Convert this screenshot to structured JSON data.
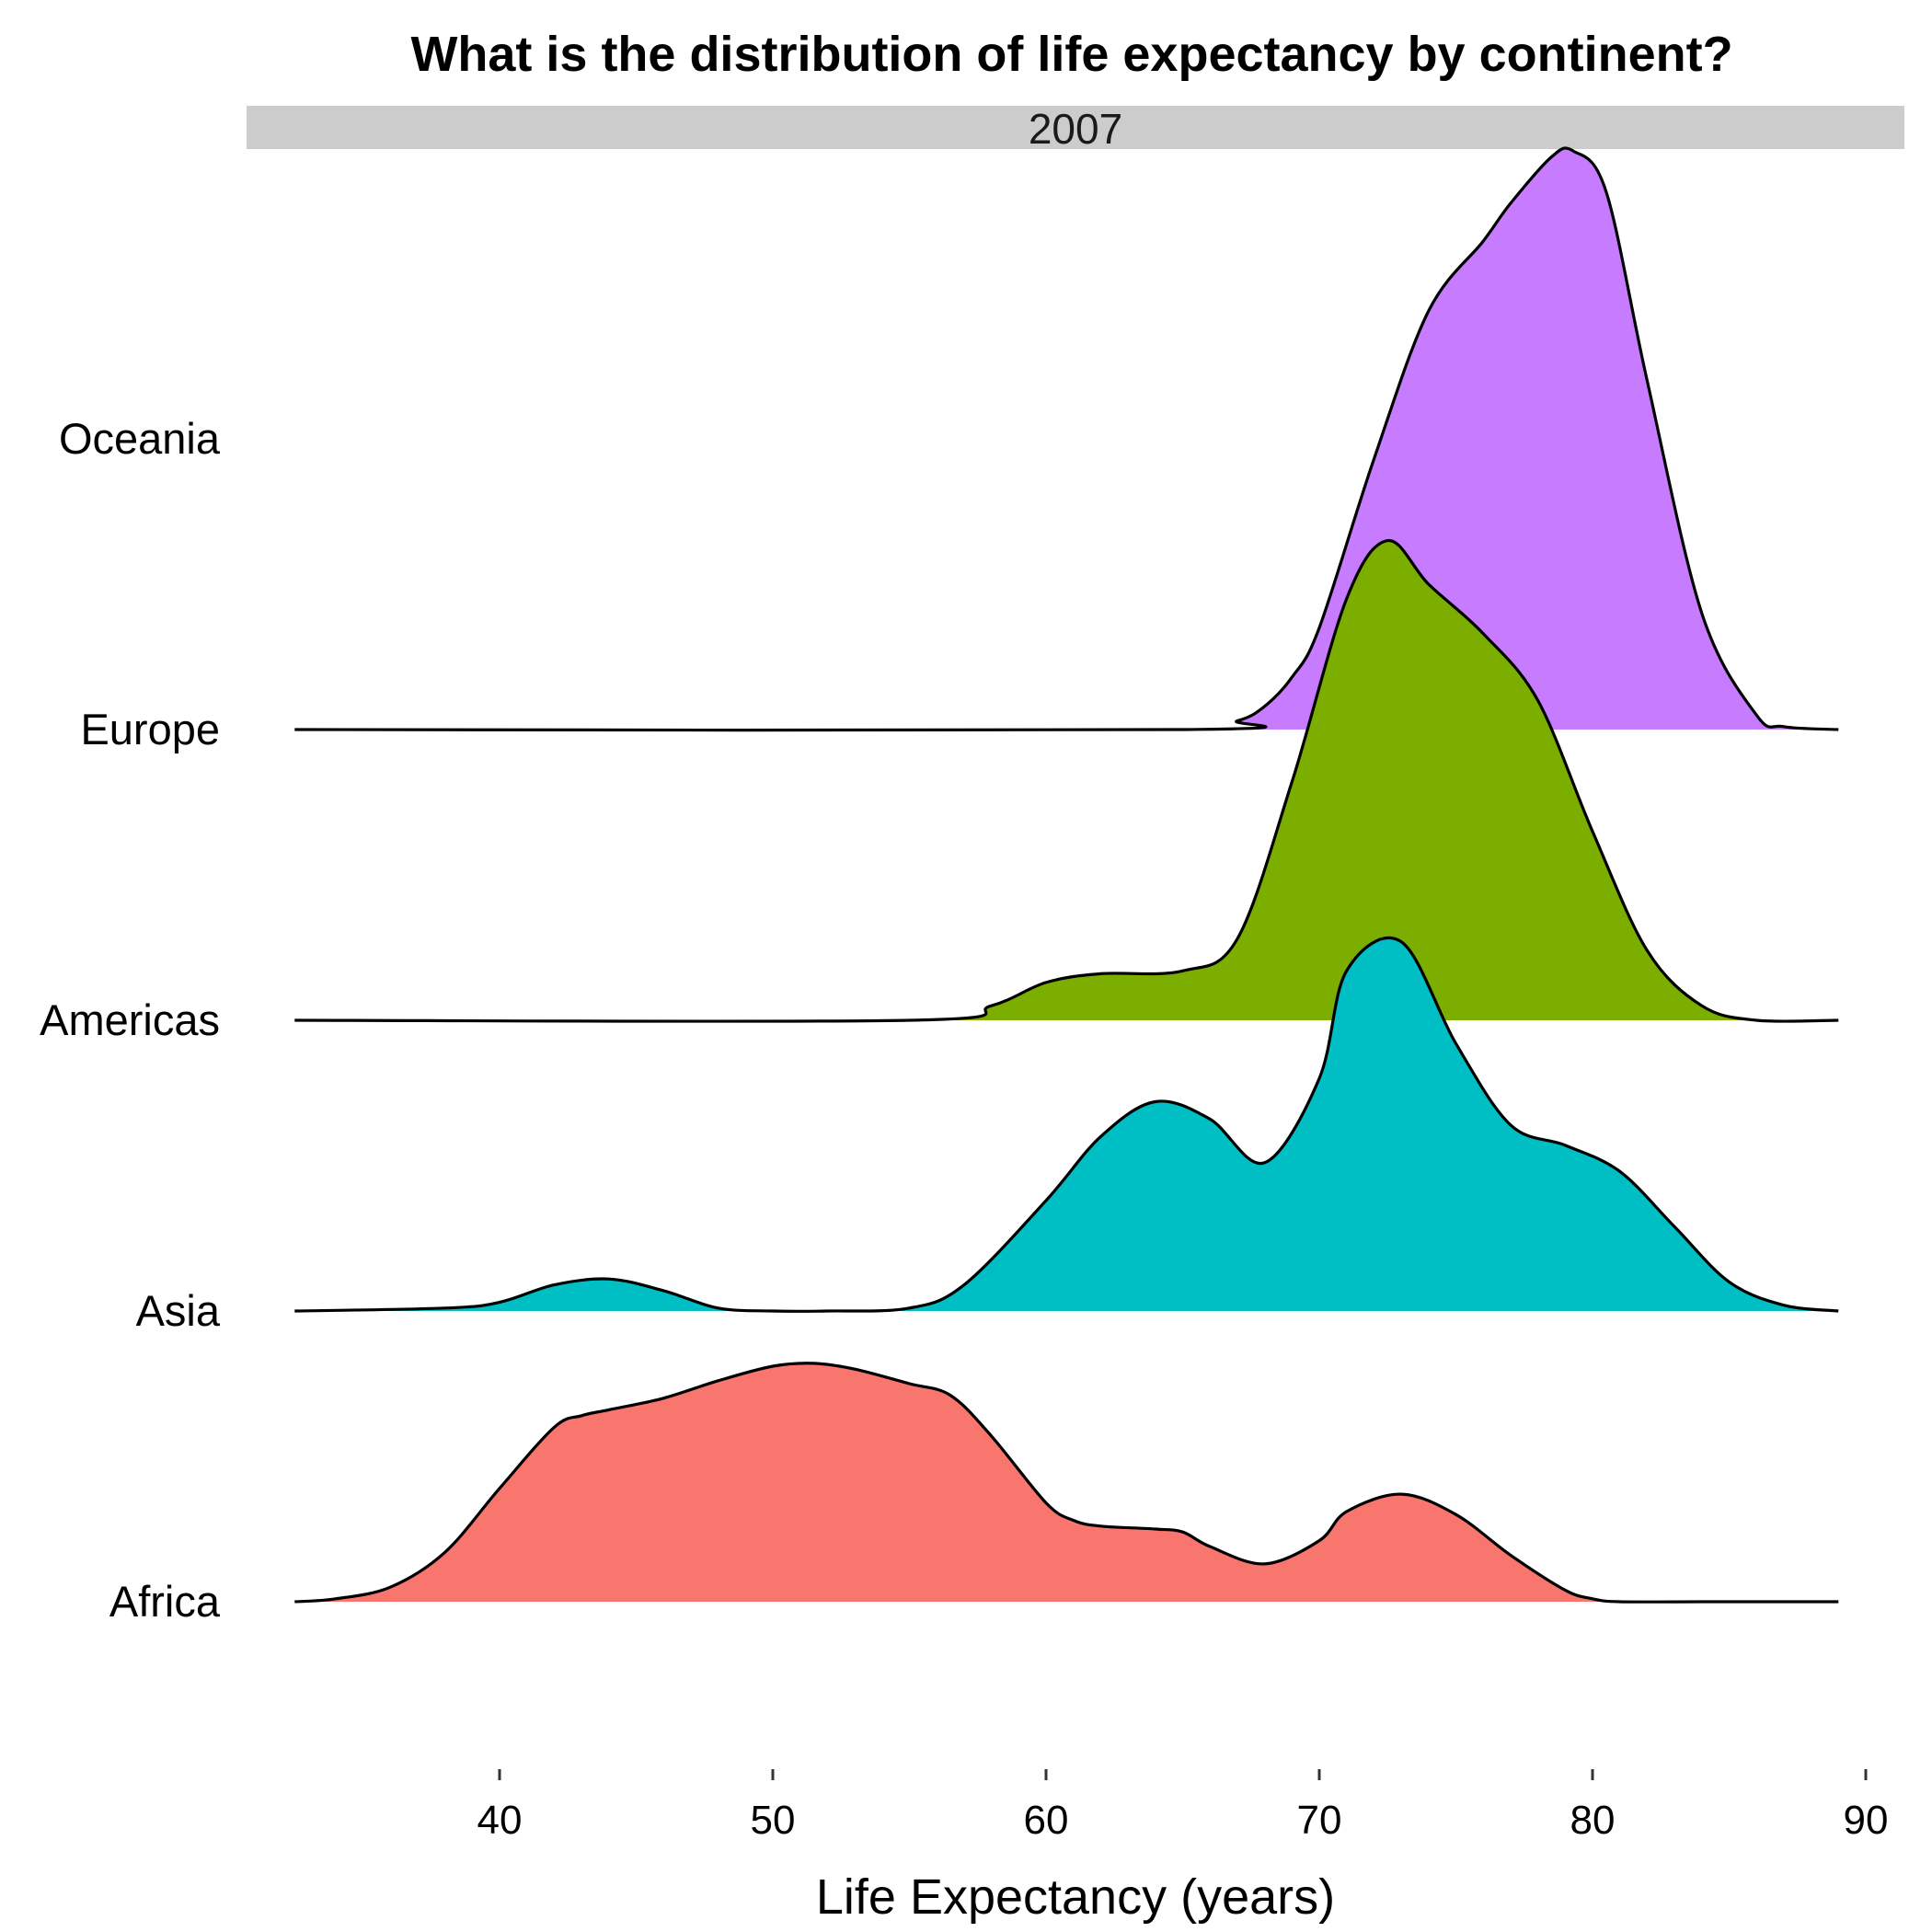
{
  "title": "What is the distribution of life expectancy by continent?",
  "chart_data": {
    "type": "area",
    "subtype": "ridgeline",
    "title": "What is the distribution of life expectancy by continent?",
    "facet_strip": "2007",
    "xlabel": "Life Expectancy (years)",
    "ylabel": "",
    "xlim": [
      32.5,
      89
    ],
    "x_ticks": [
      40,
      50,
      60,
      70,
      80,
      90
    ],
    "grid": false,
    "legend": "none",
    "categories": [
      "Africa",
      "Asia",
      "Americas",
      "Europe",
      "Oceania"
    ],
    "series": [
      {
        "name": "Africa",
        "color": "#F8766D",
        "x": [
          32.5,
          34,
          36,
          38,
          40,
          42,
          43,
          44,
          46,
          48,
          50,
          51.5,
          53,
          55,
          56.5,
          58,
          60,
          61,
          62,
          64,
          65,
          66,
          68,
          70,
          71,
          73,
          75,
          77,
          79,
          80,
          81,
          84,
          87,
          89
        ],
        "density": [
          0.0,
          0.01,
          0.05,
          0.17,
          0.39,
          0.6,
          0.64,
          0.66,
          0.7,
          0.76,
          0.81,
          0.82,
          0.8,
          0.75,
          0.71,
          0.57,
          0.34,
          0.28,
          0.26,
          0.25,
          0.24,
          0.19,
          0.13,
          0.21,
          0.31,
          0.37,
          0.3,
          0.16,
          0.04,
          0.01,
          0.0,
          0.0,
          0.0,
          0.0
        ]
      },
      {
        "name": "Asia",
        "color": "#00BFC4",
        "x": [
          32.5,
          38,
          40,
          42,
          44,
          46,
          48,
          50,
          52,
          55,
          57,
          60,
          62,
          64,
          66,
          68,
          70,
          71,
          73,
          75,
          77,
          79,
          81,
          83,
          85,
          87,
          89
        ],
        "density": [
          0.0,
          0.01,
          0.03,
          0.09,
          0.11,
          0.07,
          0.01,
          0.0,
          0.0,
          0.01,
          0.09,
          0.38,
          0.6,
          0.72,
          0.66,
          0.51,
          0.8,
          1.17,
          1.27,
          0.92,
          0.64,
          0.57,
          0.48,
          0.29,
          0.1,
          0.02,
          0.0
        ]
      },
      {
        "name": "Americas",
        "color": "#7CAE00",
        "x": [
          32.5,
          55,
          58,
          60,
          62,
          65,
          67,
          69,
          71,
          72.5,
          74,
          76,
          78,
          80,
          82,
          84,
          86,
          89
        ],
        "density": [
          0.0,
          0.0,
          0.05,
          0.13,
          0.16,
          0.17,
          0.28,
          0.82,
          1.45,
          1.65,
          1.5,
          1.33,
          1.1,
          0.65,
          0.24,
          0.05,
          0.0,
          0.0
        ]
      },
      {
        "name": "Europe",
        "color": "#C77CFF",
        "x": [
          32.5,
          65,
          67,
          68,
          69,
          70,
          72,
          74,
          76,
          77,
          78.5,
          79.3,
          80.5,
          82,
          84,
          86,
          87,
          89
        ],
        "density": [
          0.0,
          0.0,
          0.03,
          0.08,
          0.18,
          0.35,
          0.93,
          1.44,
          1.68,
          1.81,
          1.97,
          1.99,
          1.85,
          1.2,
          0.4,
          0.05,
          0.01,
          0.0
        ]
      }
    ]
  }
}
